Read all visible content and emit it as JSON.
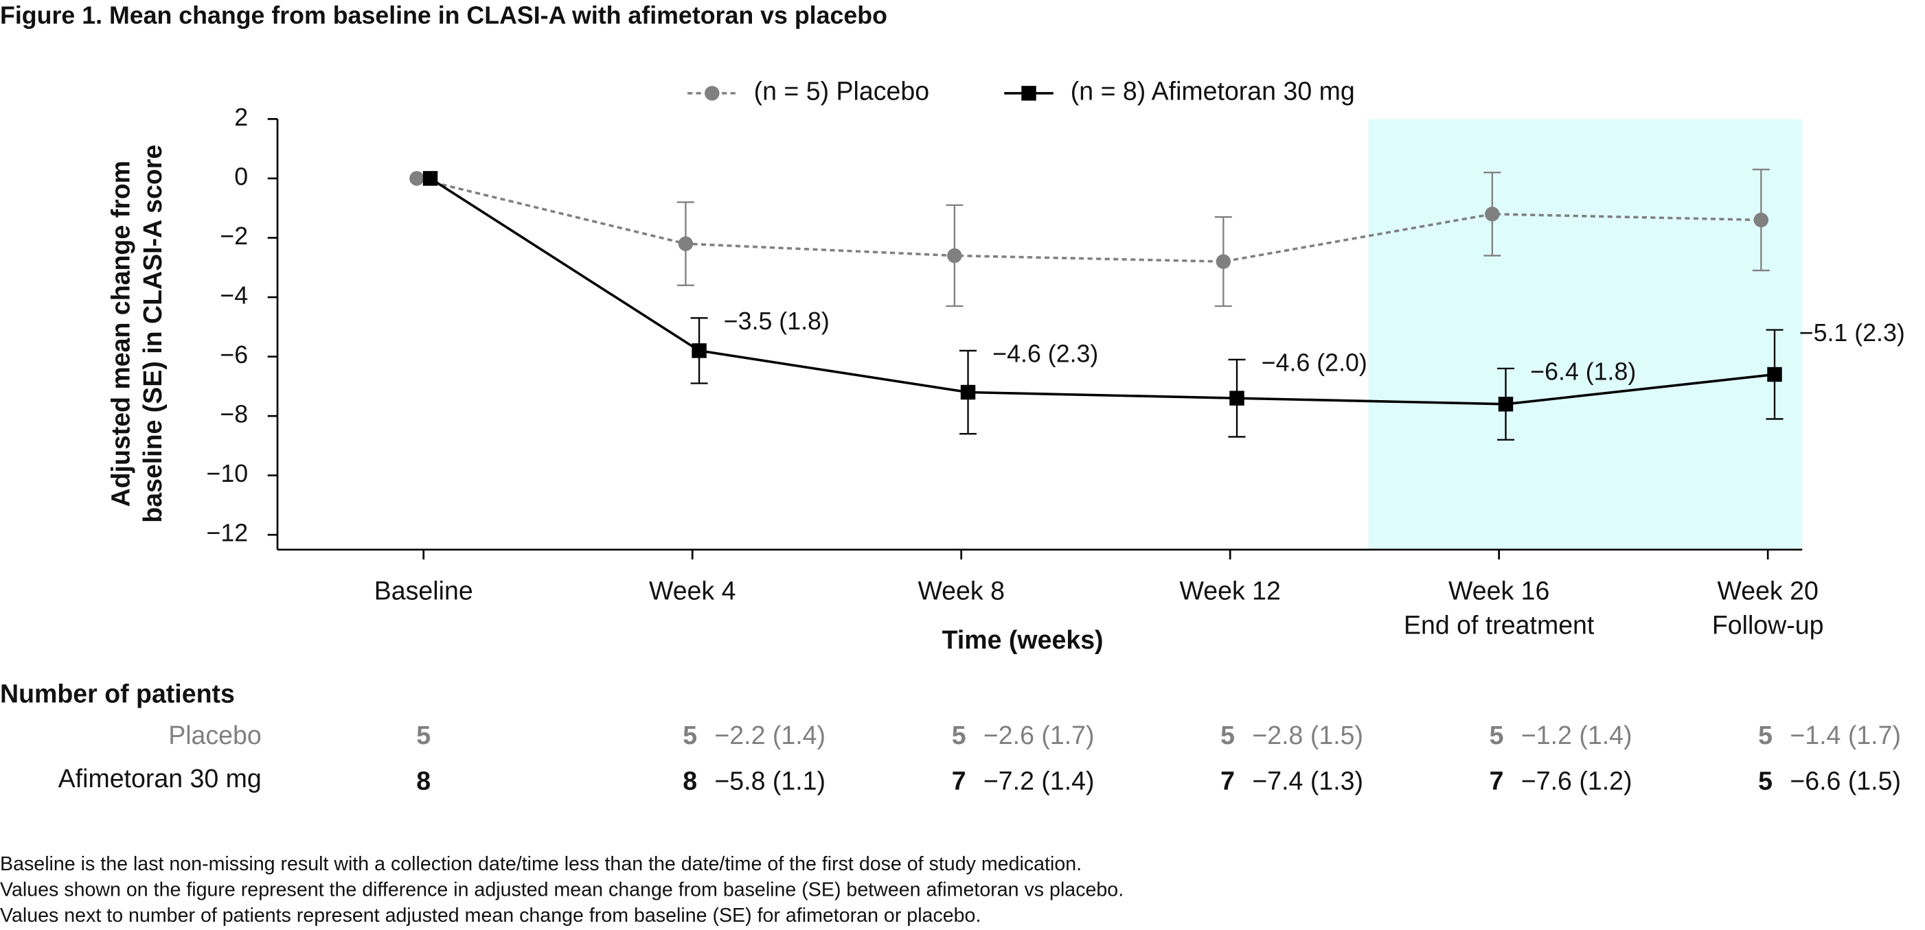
{
  "chart_data": {
    "type": "line",
    "title": "Figure 1. Mean change from baseline in CLASI-A with afimetoran vs placebo",
    "categories": [
      "Baseline",
      "Week 4",
      "Week 8",
      "Week 12",
      "Week 16",
      "Week 20"
    ],
    "category_sublabels": [
      null,
      null,
      null,
      null,
      "End of treatment",
      "Follow-up"
    ],
    "xlabel": "Time (weeks)",
    "ylabel": [
      "Adjusted mean change from",
      "baseline (SE) in CLASI-A score"
    ],
    "ylim": [
      -12.5,
      2
    ],
    "yticks": [
      {
        "value": 2,
        "label": "2"
      },
      {
        "value": 0,
        "label": "0"
      },
      {
        "value": -2,
        "label": "−2"
      },
      {
        "value": -4,
        "label": "−4"
      },
      {
        "value": -6,
        "label": "−6"
      },
      {
        "value": -8,
        "label": "−8"
      },
      {
        "value": -10,
        "label": "−10"
      },
      {
        "value": -12,
        "label": "−12"
      }
    ],
    "highlight_categories": [
      4,
      5
    ],
    "highlight_color": "#dffcfd",
    "series": [
      {
        "name": "(n = 5) Placebo",
        "table_label": "Placebo",
        "color": "#808080",
        "dashed": true,
        "marker": "circle",
        "values": [
          0,
          -2.2,
          -2.6,
          -2.8,
          -1.2,
          -1.4
        ],
        "errors": [
          null,
          1.4,
          1.7,
          1.5,
          1.4,
          1.7
        ],
        "value_labels": [
          null,
          "−2.2 (1.4)",
          "−2.6 (1.7)",
          "−2.8 (1.5)",
          "−1.2 (1.4)",
          "−1.4 (1.7)"
        ],
        "n_patients": [
          5,
          5,
          5,
          5,
          5,
          5
        ]
      },
      {
        "name": "(n = 8) Afimetoran 30 mg",
        "table_label": "Afimetoran 30 mg",
        "color": "#000000",
        "dashed": false,
        "marker": "square",
        "values": [
          0,
          -5.8,
          -7.2,
          -7.4,
          -7.6,
          -6.6
        ],
        "errors": [
          null,
          1.1,
          1.4,
          1.3,
          1.2,
          1.5
        ],
        "value_labels": [
          null,
          "−5.8 (1.1)",
          "−7.2 (1.4)",
          "−7.4 (1.3)",
          "−7.6 (1.2)",
          "−6.6 (1.5)"
        ],
        "n_patients": [
          8,
          8,
          7,
          7,
          7,
          5
        ],
        "difference_labels": [
          null,
          "−3.5 (1.8)",
          "−4.6 (2.3)",
          "−4.6 (2.0)",
          "−6.4 (1.8)",
          "−5.1 (2.3)"
        ]
      }
    ],
    "table_title": "Number of patients",
    "footnotes": [
      "Baseline is the last non-missing result with a collection date/time less than the date/time of the first dose of study medication.",
      "Values shown on the figure represent the difference in adjusted mean change from baseline (SE) between afimetoran vs placebo.",
      "Values next to number of patients represent adjusted mean change from baseline (SE) for afimetoran or placebo."
    ]
  }
}
